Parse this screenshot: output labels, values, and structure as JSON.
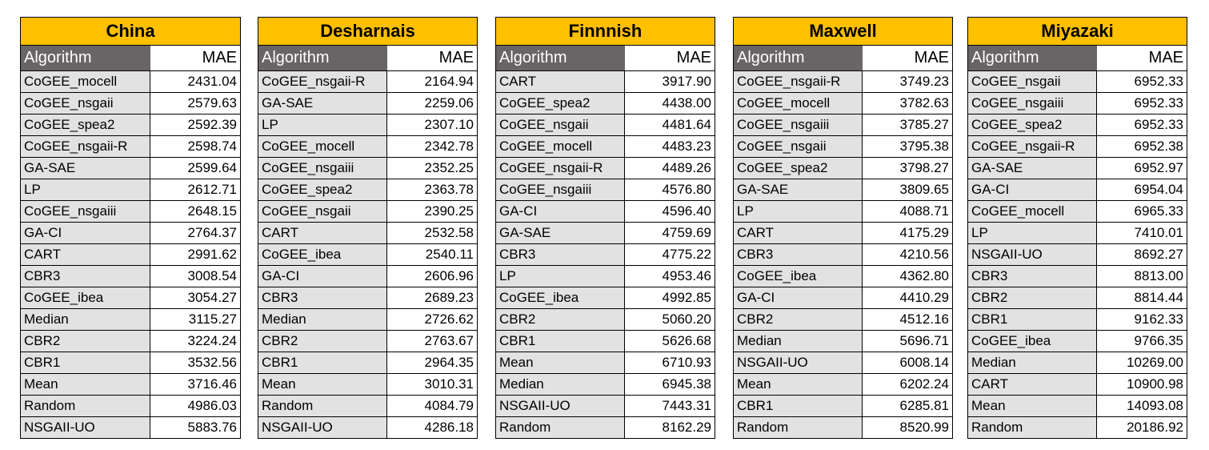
{
  "tables": [
    {
      "title": "China",
      "header": {
        "algorithm": "Algorithm",
        "mae": "MAE"
      },
      "rows": [
        [
          "CoGEE_mocell",
          "2431.04"
        ],
        [
          "CoGEE_nsgaii",
          "2579.63"
        ],
        [
          "CoGEE_spea2",
          "2592.39"
        ],
        [
          "CoGEE_nsgaii-R",
          "2598.74"
        ],
        [
          "GA-SAE",
          "2599.64"
        ],
        [
          "LP",
          "2612.71"
        ],
        [
          "CoGEE_nsgaiii",
          "2648.15"
        ],
        [
          "GA-CI",
          "2764.37"
        ],
        [
          "CART",
          "2991.62"
        ],
        [
          "CBR3",
          "3008.54"
        ],
        [
          "CoGEE_ibea",
          "3054.27"
        ],
        [
          "Median",
          "3115.27"
        ],
        [
          "CBR2",
          "3224.24"
        ],
        [
          "CBR1",
          "3532.56"
        ],
        [
          "Mean",
          "3716.46"
        ],
        [
          "Random",
          "4986.03"
        ],
        [
          "NSGAII-UO",
          "5883.76"
        ]
      ]
    },
    {
      "title": "Desharnais",
      "header": {
        "algorithm": "Algorithm",
        "mae": "MAE"
      },
      "rows": [
        [
          "CoGEE_nsgaii-R",
          "2164.94"
        ],
        [
          "GA-SAE",
          "2259.06"
        ],
        [
          "LP",
          "2307.10"
        ],
        [
          "CoGEE_mocell",
          "2342.78"
        ],
        [
          "CoGEE_nsgaiii",
          "2352.25"
        ],
        [
          "CoGEE_spea2",
          "2363.78"
        ],
        [
          "CoGEE_nsgaii",
          "2390.25"
        ],
        [
          "CART",
          "2532.58"
        ],
        [
          "CoGEE_ibea",
          "2540.11"
        ],
        [
          "GA-CI",
          "2606.96"
        ],
        [
          "CBR3",
          "2689.23"
        ],
        [
          "Median",
          "2726.62"
        ],
        [
          "CBR2",
          "2763.67"
        ],
        [
          "CBR1",
          "2964.35"
        ],
        [
          "Mean",
          "3010.31"
        ],
        [
          "Random",
          "4084.79"
        ],
        [
          "NSGAII-UO",
          "4286.18"
        ]
      ]
    },
    {
      "title": "Finnnish",
      "header": {
        "algorithm": "Algorithm",
        "mae": "MAE"
      },
      "rows": [
        [
          "CART",
          "3917.90"
        ],
        [
          "CoGEE_spea2",
          "4438.00"
        ],
        [
          "CoGEE_nsgaii",
          "4481.64"
        ],
        [
          "CoGEE_mocell",
          "4483.23"
        ],
        [
          "CoGEE_nsgaii-R",
          "4489.26"
        ],
        [
          "CoGEE_nsgaiii",
          "4576.80"
        ],
        [
          "GA-CI",
          "4596.40"
        ],
        [
          "GA-SAE",
          "4759.69"
        ],
        [
          "CBR3",
          "4775.22"
        ],
        [
          "LP",
          "4953.46"
        ],
        [
          "CoGEE_ibea",
          "4992.85"
        ],
        [
          "CBR2",
          "5060.20"
        ],
        [
          "CBR1",
          "5626.68"
        ],
        [
          "Mean",
          "6710.93"
        ],
        [
          "Median",
          "6945.38"
        ],
        [
          "NSGAII-UO",
          "7443.31"
        ],
        [
          "Random",
          "8162.29"
        ]
      ]
    },
    {
      "title": "Maxwell",
      "header": {
        "algorithm": "Algorithm",
        "mae": "MAE"
      },
      "rows": [
        [
          "CoGEE_nsgaii-R",
          "3749.23"
        ],
        [
          "CoGEE_mocell",
          "3782.63"
        ],
        [
          "CoGEE_nsgaiii",
          "3785.27"
        ],
        [
          "CoGEE_nsgaii",
          "3795.38"
        ],
        [
          "CoGEE_spea2",
          "3798.27"
        ],
        [
          "GA-SAE",
          "3809.65"
        ],
        [
          "LP",
          "4088.71"
        ],
        [
          "CART",
          "4175.29"
        ],
        [
          "CBR3",
          "4210.56"
        ],
        [
          "CoGEE_ibea",
          "4362.80"
        ],
        [
          "GA-CI",
          "4410.29"
        ],
        [
          "CBR2",
          "4512.16"
        ],
        [
          "Median",
          "5696.71"
        ],
        [
          "NSGAII-UO",
          "6008.14"
        ],
        [
          "Mean",
          "6202.24"
        ],
        [
          "CBR1",
          "6285.81"
        ],
        [
          "Random",
          "8520.99"
        ]
      ]
    },
    {
      "title": "Miyazaki",
      "header": {
        "algorithm": "Algorithm",
        "mae": "MAE"
      },
      "rows": [
        [
          "CoGEE_nsgaii",
          "6952.33"
        ],
        [
          "CoGEE_nsgaiii",
          "6952.33"
        ],
        [
          "CoGEE_spea2",
          "6952.33"
        ],
        [
          "CoGEE_nsgaii-R",
          "6952.38"
        ],
        [
          "GA-SAE",
          "6952.97"
        ],
        [
          "GA-CI",
          "6954.04"
        ],
        [
          "CoGEE_mocell",
          "6965.33"
        ],
        [
          "LP",
          "7410.01"
        ],
        [
          "NSGAII-UO",
          "8692.27"
        ],
        [
          "CBR3",
          "8813.00"
        ],
        [
          "CBR2",
          "8814.44"
        ],
        [
          "CBR1",
          "9162.33"
        ],
        [
          "CoGEE_ibea",
          "9766.35"
        ],
        [
          "Median",
          "10269.00"
        ],
        [
          "CART",
          "10900.98"
        ],
        [
          "Mean",
          "14093.08"
        ],
        [
          "Random",
          "20186.92"
        ]
      ]
    }
  ]
}
